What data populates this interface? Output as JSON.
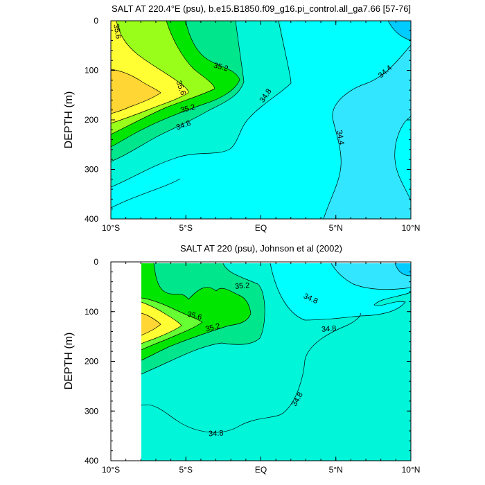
{
  "colors": {
    "s33": "#00ccff",
    "s34a": "#33e6ff",
    "s34b": "#00ffff",
    "s34c": "#00f5d9",
    "s35a": "#00e68c",
    "s35b": "#00e600",
    "s35c": "#66ff33",
    "s35d": "#99ff1a",
    "s35e": "#ffff33",
    "s35f": "#ffd633",
    "s36": "#ffbb33"
  },
  "chart_data": [
    {
      "type": "contour",
      "title": "SALT AT 220.4°E (psu), b.e15.B1850.f09_g16.pi_control.all_ga7.66 [57-76]",
      "ylabel": "DEPTH (m)",
      "x_ticks": [
        "10°S",
        "5°S",
        "EQ",
        "5°N",
        "10°N"
      ],
      "x_range": [
        -10,
        10
      ],
      "y_ticks": [
        "0",
        "100",
        "200",
        "300",
        "400"
      ],
      "y_range": [
        0,
        400
      ],
      "y_reversed": true,
      "contour_labels": [
        "35.6",
        "35.2",
        "35.6",
        "34.8",
        "35.2",
        "34.8",
        "34.4",
        "34.4"
      ]
    },
    {
      "type": "contour",
      "title": "SALT AT 220 (psu), Johnson et al (2002)",
      "ylabel": "DEPTH (m)",
      "x_ticks": [
        "10°S",
        "5°S",
        "EQ",
        "5°N",
        "10°N"
      ],
      "x_range": [
        -10,
        10
      ],
      "y_ticks": [
        "0",
        "100",
        "200",
        "300",
        "400"
      ],
      "y_range": [
        0,
        400
      ],
      "y_reversed": true,
      "data_x_start": -8,
      "contour_labels": [
        "35.2",
        "34.8",
        "35.6",
        "34.8",
        "35.2",
        "34.8",
        "34.8"
      ]
    }
  ]
}
